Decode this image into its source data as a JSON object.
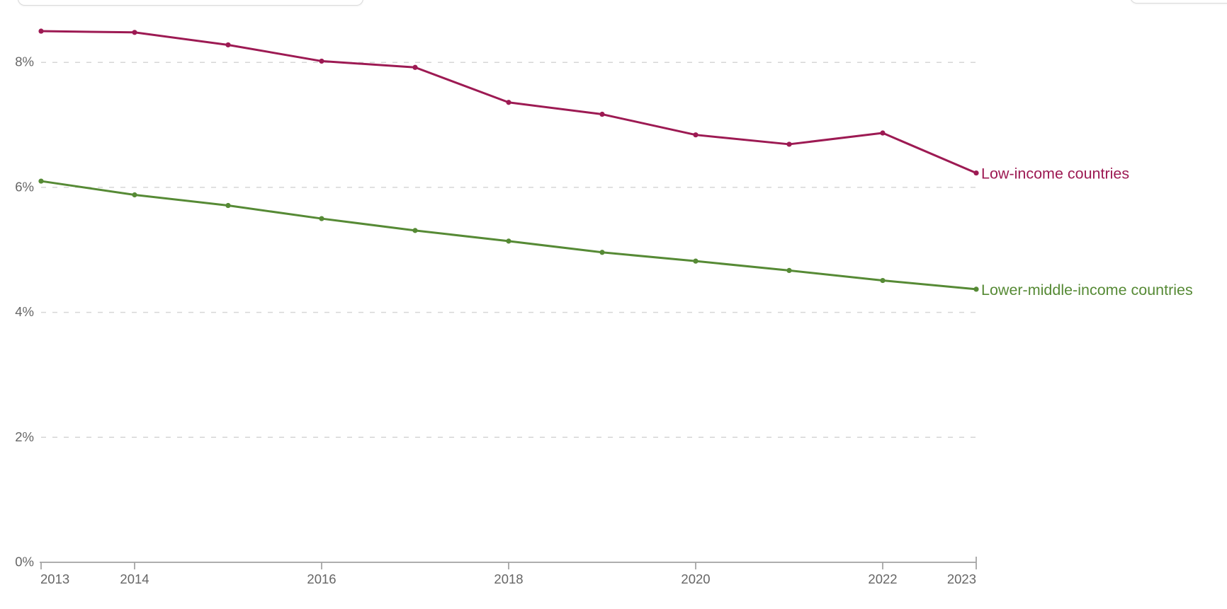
{
  "chart_data": {
    "type": "line",
    "x": [
      2013,
      2014,
      2015,
      2016,
      2017,
      2018,
      2019,
      2020,
      2021,
      2022,
      2023
    ],
    "series": [
      {
        "name": "Low-income countries",
        "color": "#9d1a53",
        "values": [
          8.5,
          8.48,
          8.28,
          8.02,
          7.92,
          7.36,
          7.17,
          6.84,
          6.69,
          6.87,
          6.23
        ]
      },
      {
        "name": "Lower-middle-income countries",
        "color": "#568a35",
        "values": [
          6.1,
          5.88,
          5.71,
          5.5,
          5.31,
          5.14,
          4.96,
          4.82,
          4.67,
          4.51,
          4.37
        ]
      }
    ],
    "y_ticks": [
      {
        "value": 0,
        "label": "0%"
      },
      {
        "value": 2,
        "label": "2%"
      },
      {
        "value": 4,
        "label": "4%"
      },
      {
        "value": 6,
        "label": "6%"
      },
      {
        "value": 8,
        "label": "8%"
      }
    ],
    "x_ticks": [
      {
        "value": 2013,
        "label": "2013",
        "align": "start"
      },
      {
        "value": 2014,
        "label": "2014",
        "align": "middle"
      },
      {
        "value": 2016,
        "label": "2016",
        "align": "middle"
      },
      {
        "value": 2018,
        "label": "2018",
        "align": "middle"
      },
      {
        "value": 2020,
        "label": "2020",
        "align": "middle"
      },
      {
        "value": 2022,
        "label": "2022",
        "align": "middle"
      },
      {
        "value": 2023,
        "label": "2023",
        "align": "end"
      }
    ],
    "ylim": [
      0,
      8.9
    ],
    "xlim": [
      2013,
      2023
    ],
    "grid": "dashed-horizontal",
    "legend_position": "end-of-line-labels"
  },
  "colors": {
    "axis_text": "#666666",
    "grid_line": "#d6d6d6",
    "axis_line": "#a3a3a3",
    "background": "#ffffff"
  }
}
